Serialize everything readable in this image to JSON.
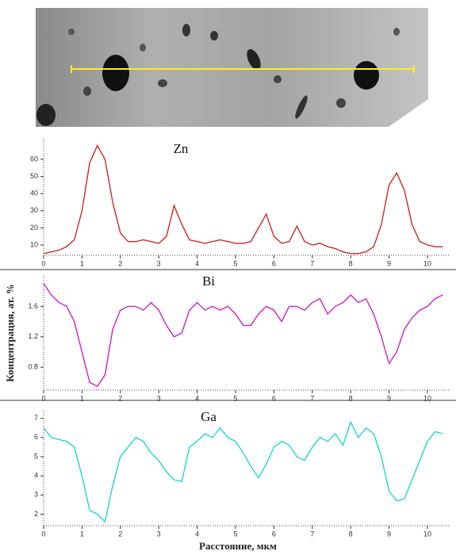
{
  "chart_data": [
    {
      "type": "line",
      "title": "Zn",
      "color": "#cc2a2a",
      "x": [
        0,
        0.2,
        0.4,
        0.6,
        0.8,
        1.0,
        1.2,
        1.4,
        1.6,
        1.8,
        2.0,
        2.2,
        2.4,
        2.6,
        2.8,
        3.0,
        3.2,
        3.4,
        3.6,
        3.8,
        4.0,
        4.2,
        4.4,
        4.6,
        4.8,
        5.0,
        5.2,
        5.4,
        5.6,
        5.8,
        6.0,
        6.2,
        6.4,
        6.6,
        6.8,
        7.0,
        7.2,
        7.4,
        7.6,
        7.8,
        8.0,
        8.2,
        8.4,
        8.6,
        8.8,
        9.0,
        9.2,
        9.4,
        9.6,
        9.8,
        10.0,
        10.2,
        10.4
      ],
      "values": [
        5,
        6,
        7,
        9,
        13,
        30,
        58,
        68,
        60,
        35,
        17,
        12,
        12,
        13,
        12,
        11,
        15,
        33,
        22,
        13,
        12,
        11,
        12,
        13,
        12,
        11,
        11,
        12,
        20,
        28,
        15,
        11,
        12,
        21,
        12,
        10,
        11,
        9,
        8,
        6,
        5,
        5,
        6,
        9,
        22,
        45,
        52,
        42,
        22,
        12,
        10,
        9,
        9
      ],
      "xlim": [
        0,
        10.6
      ],
      "xticks": [
        0,
        1,
        2,
        3,
        4,
        5,
        6,
        7,
        8,
        9,
        10
      ],
      "ylim": [
        4,
        72
      ],
      "yticks": [
        10,
        20,
        30,
        40,
        50,
        60
      ]
    },
    {
      "type": "line",
      "title": "Bi",
      "color": "#cc22cc",
      "ylabel": "Концентрация, ат. %",
      "x": [
        0,
        0.2,
        0.4,
        0.6,
        0.8,
        1.0,
        1.2,
        1.4,
        1.6,
        1.8,
        2.0,
        2.2,
        2.4,
        2.6,
        2.8,
        3.0,
        3.2,
        3.4,
        3.6,
        3.8,
        4.0,
        4.2,
        4.4,
        4.6,
        4.8,
        5.0,
        5.2,
        5.4,
        5.6,
        5.8,
        6.0,
        6.2,
        6.4,
        6.6,
        6.8,
        7.0,
        7.2,
        7.4,
        7.6,
        7.8,
        8.0,
        8.2,
        8.4,
        8.6,
        8.8,
        9.0,
        9.2,
        9.4,
        9.6,
        9.8,
        10.0,
        10.2,
        10.4
      ],
      "values": [
        1.9,
        1.75,
        1.65,
        1.6,
        1.4,
        1.0,
        0.6,
        0.55,
        0.7,
        1.3,
        1.55,
        1.6,
        1.6,
        1.55,
        1.65,
        1.55,
        1.35,
        1.2,
        1.25,
        1.55,
        1.65,
        1.55,
        1.6,
        1.55,
        1.6,
        1.5,
        1.35,
        1.35,
        1.5,
        1.6,
        1.55,
        1.4,
        1.6,
        1.6,
        1.55,
        1.65,
        1.7,
        1.5,
        1.6,
        1.65,
        1.75,
        1.65,
        1.7,
        1.5,
        1.2,
        0.85,
        1.0,
        1.3,
        1.45,
        1.55,
        1.6,
        1.7,
        1.75
      ],
      "xlim": [
        0,
        10.6
      ],
      "xticks": [
        0,
        1,
        2,
        3,
        4,
        5,
        6,
        7,
        8,
        9,
        10
      ],
      "ylim": [
        0.5,
        2.0
      ],
      "yticks": [
        0.8,
        1.2,
        1.6
      ]
    },
    {
      "type": "line",
      "title": "Ga",
      "color": "#22d6d6",
      "xlabel": "Расстояние, мкм",
      "x": [
        0,
        0.2,
        0.4,
        0.6,
        0.8,
        1.0,
        1.2,
        1.4,
        1.6,
        1.8,
        2.0,
        2.2,
        2.4,
        2.6,
        2.8,
        3.0,
        3.2,
        3.4,
        3.6,
        3.8,
        4.0,
        4.2,
        4.4,
        4.6,
        4.8,
        5.0,
        5.2,
        5.4,
        5.6,
        5.8,
        6.0,
        6.2,
        6.4,
        6.6,
        6.8,
        7.0,
        7.2,
        7.4,
        7.6,
        7.8,
        8.0,
        8.2,
        8.4,
        8.6,
        8.8,
        9.0,
        9.2,
        9.4,
        9.6,
        9.8,
        10.0,
        10.2,
        10.4
      ],
      "values": [
        6.5,
        6.0,
        5.9,
        5.8,
        5.5,
        4.0,
        2.2,
        2.0,
        1.6,
        3.5,
        5.0,
        5.5,
        6.0,
        5.8,
        5.2,
        4.8,
        4.2,
        3.8,
        3.7,
        5.5,
        5.8,
        6.2,
        6.0,
        6.5,
        6.0,
        5.8,
        5.2,
        4.5,
        3.9,
        4.6,
        5.5,
        5.8,
        5.6,
        5.0,
        4.8,
        5.5,
        6.0,
        5.8,
        6.2,
        5.6,
        6.8,
        6.0,
        6.5,
        6.2,
        5.0,
        3.2,
        2.7,
        2.8,
        3.8,
        4.8,
        5.8,
        6.3,
        6.2
      ],
      "xlim": [
        0,
        10.6
      ],
      "xticks": [
        0,
        1,
        2,
        3,
        4,
        5,
        6,
        7,
        8,
        9,
        10
      ],
      "ylim": [
        1.4,
        7.4
      ],
      "yticks": [
        2,
        3,
        4,
        5,
        6,
        7
      ]
    }
  ]
}
